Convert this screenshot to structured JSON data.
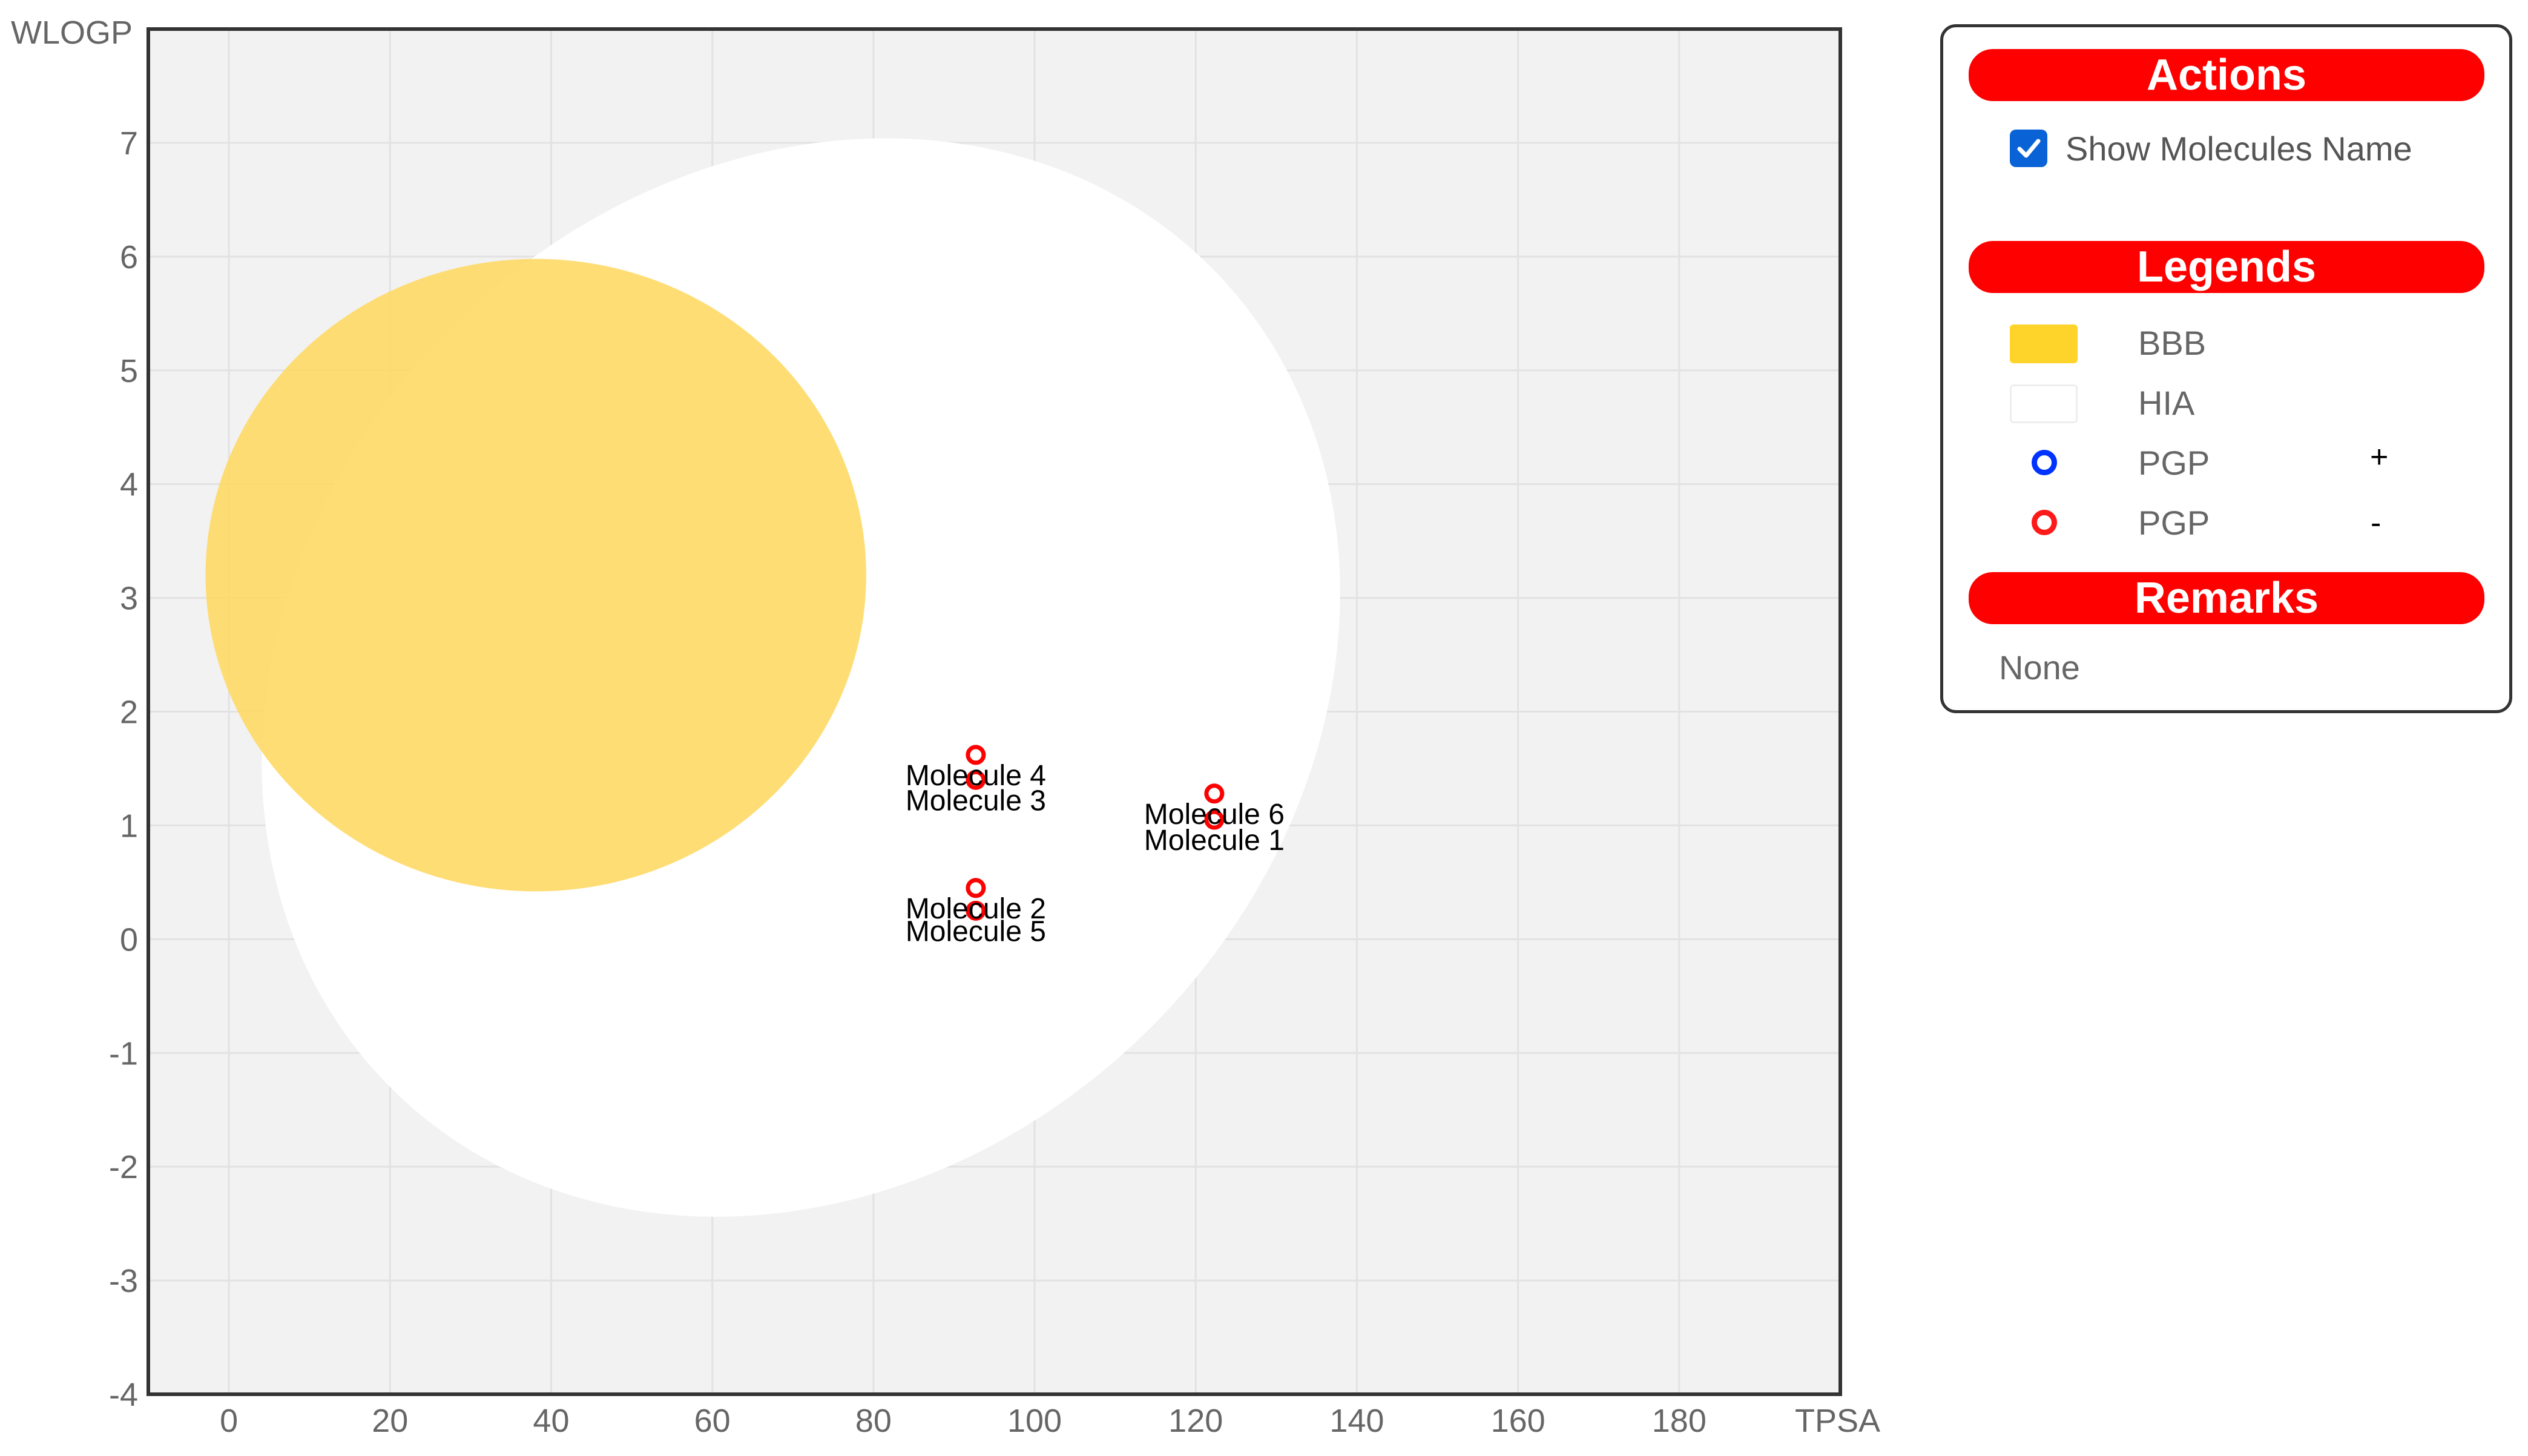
{
  "chart_data": {
    "type": "scatter",
    "xlabel": "TPSA",
    "ylabel": "WLOGP",
    "xlim": [
      -10,
      200
    ],
    "ylim": [
      -4,
      8
    ],
    "x_ticks": [
      0,
      20,
      40,
      60,
      80,
      100,
      120,
      140,
      160,
      180
    ],
    "y_ticks": [
      -4,
      -3,
      -2,
      -1,
      0,
      1,
      2,
      3,
      4,
      5,
      6,
      7
    ],
    "grid": true,
    "regions": [
      {
        "name": "HIA",
        "shape": "ellipse",
        "center": [
          71.0,
          2.3
        ],
        "radii": [
          72.0,
          4.35
        ],
        "rotation_deg": -45,
        "color": "#ffffff"
      },
      {
        "name": "BBB",
        "shape": "ellipse",
        "center": [
          38.1,
          3.2
        ],
        "radii": [
          41.0,
          2.78
        ],
        "rotation_deg": 0,
        "color": "#ffd966"
      }
    ],
    "series": [
      {
        "name": "PGP-",
        "color": "#ff0000",
        "points": [
          {
            "label": "Molecule 1",
            "x": 122.3,
            "y": 1.05
          },
          {
            "label": "Molecule 2",
            "x": 92.7,
            "y": 0.45
          },
          {
            "label": "Molecule 3",
            "x": 92.7,
            "y": 1.4
          },
          {
            "label": "Molecule 4",
            "x": 92.7,
            "y": 1.62
          },
          {
            "label": "Molecule 5",
            "x": 92.7,
            "y": 0.25
          },
          {
            "label": "Molecule 6",
            "x": 122.3,
            "y": 1.28
          }
        ]
      }
    ]
  },
  "panel": {
    "actions": {
      "header": "Actions",
      "checkbox_label": "Show Molecules Name",
      "checked": true
    },
    "legends": {
      "header": "Legends",
      "items": [
        {
          "label": "BBB",
          "marker": "swatch",
          "color": "#ffd42a"
        },
        {
          "label": "HIA",
          "marker": "swatch",
          "color": "#ffffff"
        },
        {
          "label": "PGP",
          "sign": "+",
          "marker": "ring",
          "color": "#0033ff"
        },
        {
          "label": "PGP",
          "sign": "-",
          "marker": "ring",
          "color": "#ff1a1a"
        }
      ]
    },
    "remarks": {
      "header": "Remarks",
      "text": "None"
    }
  },
  "colors": {
    "plot_background": "#f2f2f2",
    "header_red": "#ff0000",
    "checkbox_blue": "#0a63d6"
  }
}
